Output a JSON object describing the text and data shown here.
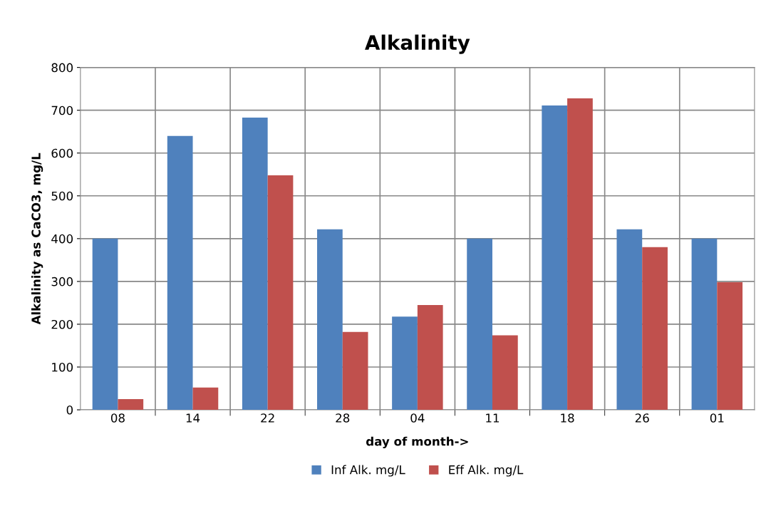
{
  "chart_data": {
    "type": "bar",
    "title": "Alkalinity",
    "xlabel": "day of month->",
    "ylabel": "Alkalinity as CaCO3, mg/L",
    "categories": [
      "08",
      "14",
      "22",
      "28",
      "04",
      "11",
      "18",
      "26",
      "01"
    ],
    "series": [
      {
        "name": "Inf Alk. mg/L",
        "color": "#4f81bd",
        "values": [
          400,
          640,
          683,
          422,
          218,
          400,
          711,
          422,
          400
        ]
      },
      {
        "name": "Eff Alk. mg/L",
        "color": "#c0504d",
        "values": [
          25,
          52,
          548,
          182,
          245,
          174,
          728,
          380,
          298
        ]
      }
    ],
    "ylim": [
      0,
      800
    ],
    "yticks": [
      0,
      100,
      200,
      300,
      400,
      500,
      600,
      700,
      800
    ],
    "grid": true,
    "legend": "bottom"
  }
}
